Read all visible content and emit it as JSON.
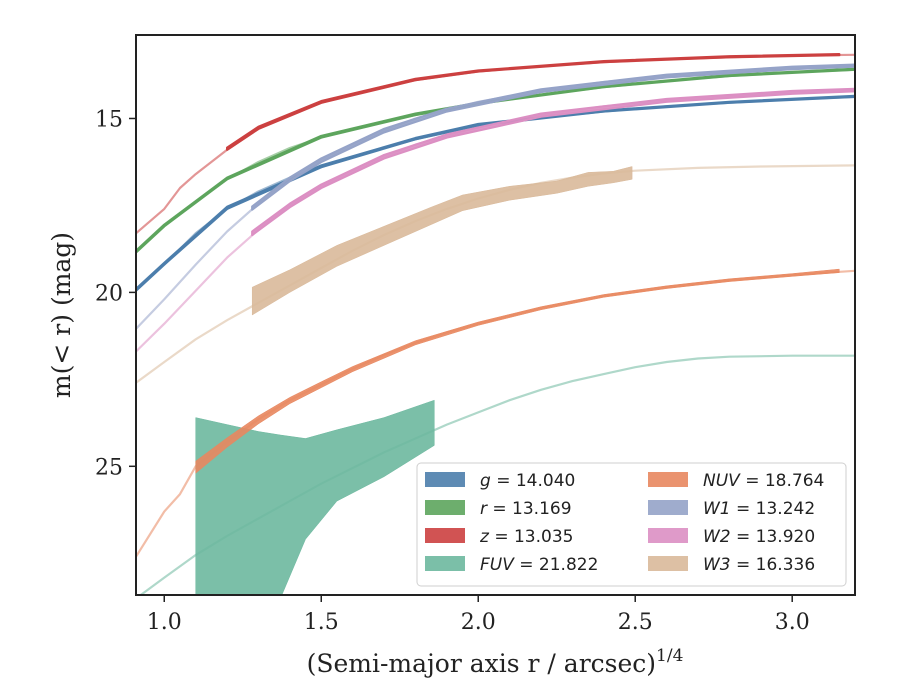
{
  "chart_data": {
    "type": "line",
    "xlabel": "(Semi-major axis r / arcsec)",
    "xlabel_sup": "1/4",
    "ylabel": "m(< r) (mag)",
    "xlim": [
      0.91,
      3.2
    ],
    "ylim": [
      28.7,
      12.6
    ],
    "y_inverted": true,
    "xticks": [
      1.0,
      1.5,
      2.0,
      2.5,
      3.0
    ],
    "xtick_labels": [
      "1.0",
      "1.5",
      "2.0",
      "2.5",
      "3.0"
    ],
    "yticks": [
      15,
      20,
      25
    ],
    "ytick_labels": [
      "15",
      "20",
      "25"
    ],
    "grid": false,
    "legend_position": "lower right",
    "series": [
      {
        "key": "g",
        "legend_symbol": "g",
        "legend_value": "14.040",
        "color": "#4c7eac",
        "full_curve": [
          [
            0.91,
            19.95
          ],
          [
            1.0,
            19.2
          ],
          [
            1.1,
            18.3
          ],
          [
            1.2,
            17.6
          ],
          [
            1.3,
            17.1
          ],
          [
            1.4,
            16.7
          ],
          [
            1.5,
            16.4
          ],
          [
            1.6,
            16.1
          ],
          [
            1.7,
            15.85
          ],
          [
            1.8,
            15.6
          ],
          [
            1.9,
            15.4
          ],
          [
            2.0,
            15.2
          ],
          [
            2.2,
            14.98
          ],
          [
            2.4,
            14.8
          ],
          [
            2.6,
            14.65
          ],
          [
            2.8,
            14.55
          ],
          [
            3.0,
            14.45
          ],
          [
            3.2,
            14.38
          ]
        ],
        "band": [
          [
            0.91,
            19.95,
            19.9
          ],
          [
            1.0,
            19.2,
            19.15
          ],
          [
            1.2,
            17.6,
            17.54
          ],
          [
            1.5,
            16.4,
            16.35
          ],
          [
            1.8,
            15.6,
            15.56
          ],
          [
            2.0,
            15.2,
            15.16
          ],
          [
            2.4,
            14.8,
            14.77
          ],
          [
            2.8,
            14.55,
            14.52
          ],
          [
            3.2,
            14.38,
            14.35
          ]
        ]
      },
      {
        "key": "r",
        "legend_symbol": "r",
        "legend_value": "13.169",
        "color": "#5da55d",
        "full_curve": [
          [
            0.91,
            18.85
          ],
          [
            1.0,
            18.1
          ],
          [
            1.1,
            17.4
          ],
          [
            1.2,
            16.75
          ],
          [
            1.3,
            16.25
          ],
          [
            1.4,
            15.85
          ],
          [
            1.5,
            15.55
          ],
          [
            1.6,
            15.3
          ],
          [
            1.7,
            15.08
          ],
          [
            1.8,
            14.9
          ],
          [
            1.9,
            14.74
          ],
          [
            2.0,
            14.58
          ],
          [
            2.2,
            14.32
          ],
          [
            2.4,
            14.1
          ],
          [
            2.6,
            13.92
          ],
          [
            2.8,
            13.78
          ],
          [
            3.0,
            13.67
          ],
          [
            3.2,
            13.6
          ]
        ],
        "band": [
          [
            0.91,
            18.85,
            18.8
          ],
          [
            1.0,
            18.1,
            18.05
          ],
          [
            1.2,
            16.75,
            16.7
          ],
          [
            1.5,
            15.55,
            15.5
          ],
          [
            1.8,
            14.9,
            14.86
          ],
          [
            2.0,
            14.58,
            14.55
          ],
          [
            2.4,
            14.1,
            14.07
          ],
          [
            2.8,
            13.78,
            13.75
          ],
          [
            3.2,
            13.6,
            13.57
          ]
        ]
      },
      {
        "key": "z",
        "legend_symbol": "z",
        "legend_value": "13.035",
        "color": "#cc4040",
        "full_curve": [
          [
            0.91,
            18.3
          ],
          [
            1.0,
            17.6
          ],
          [
            1.05,
            17.0
          ],
          [
            1.1,
            16.6
          ],
          [
            1.2,
            15.9
          ],
          [
            1.3,
            15.3
          ],
          [
            1.4,
            14.9
          ],
          [
            1.5,
            14.55
          ],
          [
            1.6,
            14.3
          ],
          [
            1.7,
            14.08
          ],
          [
            1.8,
            13.9
          ],
          [
            1.9,
            13.77
          ],
          [
            2.0,
            13.65
          ],
          [
            2.2,
            13.5
          ],
          [
            2.4,
            13.38
          ],
          [
            2.6,
            13.3
          ],
          [
            2.8,
            13.24
          ],
          [
            3.0,
            13.19
          ],
          [
            3.2,
            13.17
          ]
        ],
        "band": [
          [
            1.2,
            15.9,
            15.84
          ],
          [
            1.3,
            15.3,
            15.24
          ],
          [
            1.5,
            14.55,
            14.5
          ],
          [
            1.8,
            13.9,
            13.86
          ],
          [
            2.0,
            13.65,
            13.62
          ],
          [
            2.4,
            13.38,
            13.35
          ],
          [
            2.8,
            13.24,
            13.21
          ],
          [
            3.15,
            13.18,
            13.15
          ]
        ]
      },
      {
        "key": "FUV",
        "legend_symbol": "FUV",
        "legend_value": "21.822",
        "color": "#6db89f",
        "full_curve": [
          [
            0.91,
            28.8
          ],
          [
            1.0,
            28.2
          ],
          [
            1.1,
            27.55
          ],
          [
            1.2,
            27.0
          ],
          [
            1.3,
            26.5
          ],
          [
            1.4,
            26.0
          ],
          [
            1.5,
            25.5
          ],
          [
            1.6,
            25.05
          ],
          [
            1.7,
            24.6
          ],
          [
            1.8,
            24.2
          ],
          [
            1.9,
            23.8
          ],
          [
            2.0,
            23.45
          ],
          [
            2.1,
            23.1
          ],
          [
            2.2,
            22.8
          ],
          [
            2.3,
            22.55
          ],
          [
            2.4,
            22.35
          ],
          [
            2.5,
            22.15
          ],
          [
            2.6,
            22.0
          ],
          [
            2.7,
            21.9
          ],
          [
            2.8,
            21.85
          ],
          [
            3.0,
            21.82
          ],
          [
            3.2,
            21.82
          ]
        ],
        "band": [
          [
            1.1,
            23.6,
            29.0
          ],
          [
            1.2,
            23.8,
            29.0
          ],
          [
            1.3,
            24.0,
            29.0
          ],
          [
            1.37,
            24.1,
            28.8
          ],
          [
            1.45,
            24.2,
            27.1
          ],
          [
            1.55,
            23.95,
            26.0
          ],
          [
            1.7,
            23.6,
            25.3
          ],
          [
            1.86,
            23.1,
            24.4
          ]
        ]
      },
      {
        "key": "NUV",
        "legend_symbol": "NUV",
        "legend_value": "18.764",
        "color": "#e8875f",
        "full_curve": [
          [
            0.91,
            27.6
          ],
          [
            1.0,
            26.3
          ],
          [
            1.05,
            25.8
          ],
          [
            1.1,
            25.0
          ],
          [
            1.2,
            24.3
          ],
          [
            1.3,
            23.65
          ],
          [
            1.4,
            23.1
          ],
          [
            1.5,
            22.65
          ],
          [
            1.6,
            22.2
          ],
          [
            1.7,
            21.8
          ],
          [
            1.8,
            21.45
          ],
          [
            1.9,
            21.15
          ],
          [
            2.0,
            20.9
          ],
          [
            2.2,
            20.45
          ],
          [
            2.4,
            20.1
          ],
          [
            2.6,
            19.85
          ],
          [
            2.8,
            19.65
          ],
          [
            3.0,
            19.5
          ],
          [
            3.2,
            19.38
          ]
        ],
        "band": [
          [
            1.1,
            24.85,
            25.2
          ],
          [
            1.2,
            24.18,
            24.45
          ],
          [
            1.3,
            23.55,
            23.78
          ],
          [
            1.4,
            23.02,
            23.2
          ],
          [
            1.5,
            22.57,
            22.74
          ],
          [
            1.6,
            22.13,
            22.28
          ],
          [
            1.8,
            21.39,
            21.51
          ],
          [
            2.0,
            20.85,
            20.95
          ],
          [
            2.2,
            20.41,
            20.5
          ],
          [
            2.4,
            20.06,
            20.14
          ],
          [
            2.6,
            19.81,
            19.89
          ],
          [
            2.8,
            19.61,
            19.69
          ],
          [
            3.0,
            19.46,
            19.54
          ],
          [
            3.15,
            19.33,
            19.43
          ]
        ]
      },
      {
        "key": "W1",
        "legend_symbol": "W1",
        "legend_value": "13.242",
        "color": "#95a3c8",
        "full_curve": [
          [
            0.91,
            21.05
          ],
          [
            1.0,
            20.2
          ],
          [
            1.1,
            19.2
          ],
          [
            1.2,
            18.25
          ],
          [
            1.3,
            17.45
          ],
          [
            1.4,
            16.75
          ],
          [
            1.5,
            16.2
          ],
          [
            1.6,
            15.75
          ],
          [
            1.7,
            15.35
          ],
          [
            1.8,
            15.0
          ],
          [
            1.9,
            14.75
          ],
          [
            2.0,
            14.52
          ],
          [
            2.2,
            14.2
          ],
          [
            2.4,
            13.95
          ],
          [
            2.6,
            13.78
          ],
          [
            2.8,
            13.65
          ],
          [
            3.0,
            13.55
          ],
          [
            3.2,
            13.48
          ]
        ],
        "band": [
          [
            1.28,
            17.62,
            17.53
          ],
          [
            1.4,
            16.8,
            16.7
          ],
          [
            1.5,
            16.25,
            16.15
          ],
          [
            1.7,
            15.4,
            15.3
          ],
          [
            1.9,
            14.8,
            14.72
          ],
          [
            2.2,
            14.24,
            14.16
          ],
          [
            2.6,
            13.82,
            13.74
          ],
          [
            3.0,
            13.58,
            13.51
          ],
          [
            3.2,
            13.51,
            13.45
          ]
        ]
      },
      {
        "key": "W2",
        "legend_symbol": "W2",
        "legend_value": "13.920",
        "color": "#dc8fc3",
        "full_curve": [
          [
            0.91,
            21.7
          ],
          [
            1.0,
            20.9
          ],
          [
            1.1,
            19.95
          ],
          [
            1.2,
            19.0
          ],
          [
            1.3,
            18.2
          ],
          [
            1.4,
            17.5
          ],
          [
            1.5,
            16.95
          ],
          [
            1.6,
            16.5
          ],
          [
            1.7,
            16.1
          ],
          [
            1.8,
            15.75
          ],
          [
            1.9,
            15.5
          ],
          [
            2.0,
            15.25
          ],
          [
            2.2,
            14.9
          ],
          [
            2.4,
            14.65
          ],
          [
            2.6,
            14.48
          ],
          [
            2.8,
            14.35
          ],
          [
            3.0,
            14.25
          ],
          [
            3.2,
            14.18
          ]
        ],
        "band": [
          [
            1.28,
            18.35,
            18.25
          ],
          [
            1.4,
            17.55,
            17.45
          ],
          [
            1.5,
            17.0,
            16.9
          ],
          [
            1.7,
            16.15,
            16.05
          ],
          [
            1.9,
            15.55,
            15.46
          ],
          [
            2.2,
            14.95,
            14.86
          ],
          [
            2.6,
            14.52,
            14.44
          ],
          [
            3.0,
            14.29,
            14.21
          ],
          [
            3.2,
            14.22,
            14.15
          ]
        ]
      },
      {
        "key": "W3",
        "legend_symbol": "W3",
        "legend_value": "16.336",
        "color": "#d9b99a",
        "full_curve": [
          [
            0.91,
            22.6
          ],
          [
            1.0,
            22.0
          ],
          [
            1.1,
            21.35
          ],
          [
            1.2,
            20.8
          ],
          [
            1.3,
            20.3
          ],
          [
            1.4,
            19.8
          ],
          [
            1.5,
            19.3
          ],
          [
            1.6,
            18.8
          ],
          [
            1.7,
            18.35
          ],
          [
            1.8,
            17.95
          ],
          [
            1.9,
            17.6
          ],
          [
            2.0,
            17.3
          ],
          [
            2.1,
            17.05
          ],
          [
            2.2,
            16.85
          ],
          [
            2.3,
            16.7
          ],
          [
            2.4,
            16.58
          ],
          [
            2.5,
            16.5
          ],
          [
            2.7,
            16.42
          ],
          [
            2.9,
            16.38
          ],
          [
            3.2,
            16.35
          ]
        ],
        "band": [
          [
            1.28,
            19.85,
            20.65
          ],
          [
            1.4,
            19.35,
            20.0
          ],
          [
            1.55,
            18.65,
            19.25
          ],
          [
            1.7,
            18.1,
            18.65
          ],
          [
            1.85,
            17.55,
            18.05
          ],
          [
            1.95,
            17.2,
            17.65
          ],
          [
            2.1,
            16.95,
            17.35
          ],
          [
            2.25,
            16.8,
            17.15
          ],
          [
            2.35,
            16.55,
            16.95
          ],
          [
            2.43,
            16.52,
            16.85
          ],
          [
            2.49,
            16.38,
            16.75
          ]
        ]
      }
    ]
  }
}
